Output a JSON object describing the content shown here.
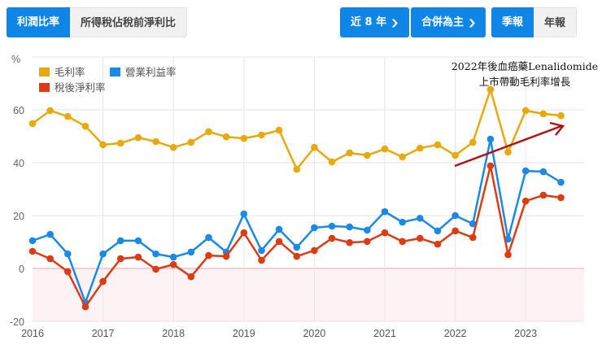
{
  "tabs": [
    {
      "label": "利潤比率",
      "active": true
    },
    {
      "label": "所得稅佔稅前淨利比",
      "active": false
    }
  ],
  "controls": {
    "range": {
      "label": "近 8 年",
      "icon": "chevron-down-icon"
    },
    "consolidation": {
      "label": "合併為主",
      "icon": "chevron-down-icon"
    },
    "period": [
      {
        "label": "季報",
        "active": true
      },
      {
        "label": "年報",
        "active": false
      }
    ]
  },
  "legend": [
    {
      "name": "毛利率",
      "color": "#e8a90c"
    },
    {
      "name": "營業利益率",
      "color": "#1a8ae6"
    },
    {
      "name": "稅後淨利率",
      "color": "#dc3c14"
    }
  ],
  "annotation": {
    "line1": "2022年後血癌藥Lenalidomide",
    "line2": "上市帶動毛利率增長",
    "arrow_color": "#b00f14"
  },
  "chart_data": {
    "type": "line",
    "title": "",
    "xlabel": "",
    "ylabel": "%",
    "ylim": [
      -20,
      70
    ],
    "yticks": [
      -20,
      0,
      20,
      40,
      60
    ],
    "xticks": [
      "2016",
      "2017",
      "2018",
      "2019",
      "2020",
      "2021",
      "2022",
      "2023"
    ],
    "grid": true,
    "legend_position": "top-left",
    "x": [
      "2016Q1",
      "2016Q2",
      "2016Q3",
      "2016Q4",
      "2017Q1",
      "2017Q2",
      "2017Q3",
      "2017Q4",
      "2018Q1",
      "2018Q2",
      "2018Q3",
      "2018Q4",
      "2019Q1",
      "2019Q2",
      "2019Q3",
      "2019Q4",
      "2020Q1",
      "2020Q2",
      "2020Q3",
      "2020Q4",
      "2021Q1",
      "2021Q2",
      "2021Q3",
      "2021Q4",
      "2022Q1",
      "2022Q2",
      "2022Q3",
      "2022Q4",
      "2023Q1",
      "2023Q2",
      "2023Q3"
    ],
    "series": [
      {
        "name": "毛利率",
        "color": "#e8a90c",
        "values": [
          54.8,
          59.7,
          57.5,
          53.8,
          46.8,
          47.4,
          49.5,
          48.0,
          45.8,
          47.7,
          51.7,
          49.8,
          49.2,
          50.5,
          52.3,
          37.5,
          45.8,
          40.3,
          43.7,
          42.8,
          45.2,
          42.2,
          45.5,
          46.8,
          42.8,
          47.7,
          67.7,
          44.0,
          59.7,
          58.5,
          57.8
        ]
      },
      {
        "name": "營業利益率",
        "color": "#1a8ae6",
        "values": [
          10.5,
          12.9,
          5.5,
          -12.9,
          5.5,
          10.5,
          10.5,
          5.5,
          4.3,
          6.2,
          11.7,
          6.2,
          20.6,
          6.8,
          14.8,
          8.0,
          15.4,
          16.0,
          15.7,
          14.5,
          21.5,
          17.5,
          19.0,
          14.2,
          20.0,
          16.9,
          48.9,
          11.1,
          36.9,
          36.6,
          32.6
        ]
      },
      {
        "name": "稅後淨利率",
        "color": "#dc3c14",
        "values": [
          6.5,
          3.7,
          -1.2,
          -14.5,
          -4.9,
          3.7,
          4.3,
          -0.3,
          1.5,
          -3.1,
          4.9,
          4.6,
          13.5,
          3.1,
          10.2,
          4.6,
          6.8,
          11.4,
          9.8,
          10.2,
          13.5,
          10.2,
          11.4,
          9.2,
          14.2,
          11.7,
          38.8,
          5.2,
          25.5,
          27.7,
          26.8
        ]
      }
    ]
  }
}
